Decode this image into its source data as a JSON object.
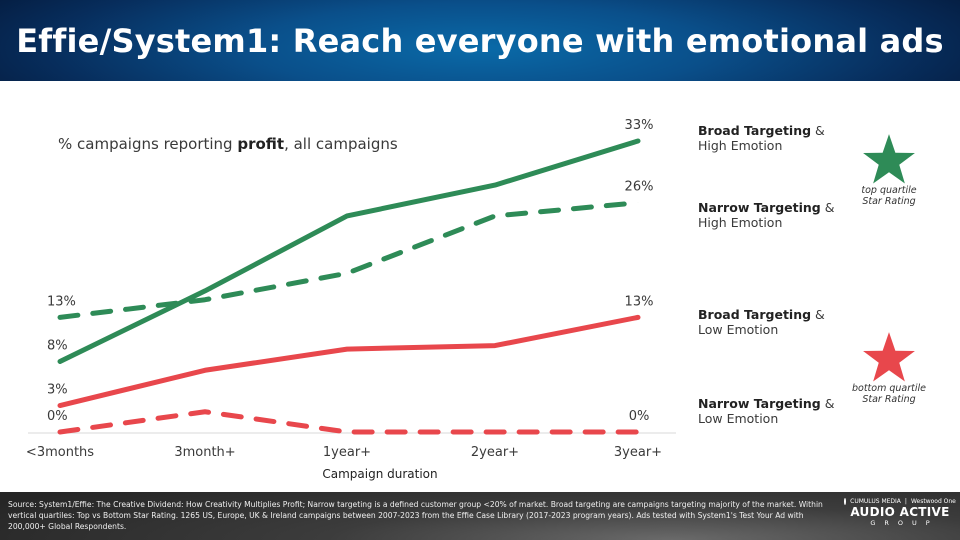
{
  "header": {
    "title": "Effie/System1: Reach everyone with emotional ads"
  },
  "chart_data": {
    "type": "line",
    "title_prefix": "% campaigns reporting ",
    "title_bold": "profit",
    "title_suffix": ", all campaigns",
    "xlabel": "Campaign duration",
    "ylabel": "",
    "categories": [
      "<3months",
      "3month+",
      "1year+",
      "2year+",
      "3year+"
    ],
    "ylim": [
      0,
      33
    ],
    "grid": false,
    "legend_position": "right",
    "series": [
      {
        "name": "Broad Targeting & High Emotion",
        "name_bold": "Broad Targeting",
        "name_amp": "&",
        "name_line2": "High Emotion",
        "color": "#2e8b57",
        "style": "solid",
        "values": [
          8,
          16,
          24.5,
          28,
          33
        ],
        "start_label": "8%",
        "end_label": "33%"
      },
      {
        "name": "Narrow Targeting & High Emotion",
        "name_bold": "Narrow Targeting",
        "name_amp": "&",
        "name_line2": "High Emotion",
        "color": "#2e8b57",
        "style": "dashed",
        "values": [
          13,
          15,
          18,
          24.5,
          26
        ],
        "start_label": "13%",
        "end_label": "26%"
      },
      {
        "name": "Broad Targeting & Low Emotion",
        "name_bold": "Broad Targeting",
        "name_amp": "&",
        "name_line2": "Low Emotion",
        "color": "#e8474c",
        "style": "solid",
        "values": [
          3,
          7,
          9.4,
          9.8,
          13
        ],
        "start_label": "3%",
        "end_label": "13%"
      },
      {
        "name": "Narrow Targeting & Low Emotion",
        "name_bold": "Narrow Targeting",
        "name_amp": "&",
        "name_line2": "Low Emotion",
        "color": "#e8474c",
        "style": "dashed",
        "values": [
          0,
          2.3,
          0,
          0,
          0
        ],
        "start_label": "0%",
        "end_label": "0%"
      }
    ]
  },
  "stars": {
    "top": {
      "color": "#2e8b57",
      "line1": "top quartile",
      "line2": "Star Rating"
    },
    "bottom": {
      "color": "#e8474c",
      "line1": "bottom quartile",
      "line2": "Star Rating"
    }
  },
  "footer": {
    "source": "Source: System1/Effie: The Creative Dividend: How Creativity Multiplies Profit; Narrow targeting is a defined customer group <20% of market. Broad targeting are campaigns targeting majority of the market. Within vertical quartiles: Top vs Bottom Star Rating. 1265 US, Europe, UK & Ireland campaigns between 2007-2023 from the Effie Case Library (2017-2023 program years). Ads tested with System1's Test Your Ad with 200,000+ Global Respondents.",
    "logo_top_left": "CUMULUS MEDIA",
    "logo_top_right": "Westwood One",
    "logo_main": "AUDIO ACTIVE",
    "logo_sub": "GROUP"
  }
}
